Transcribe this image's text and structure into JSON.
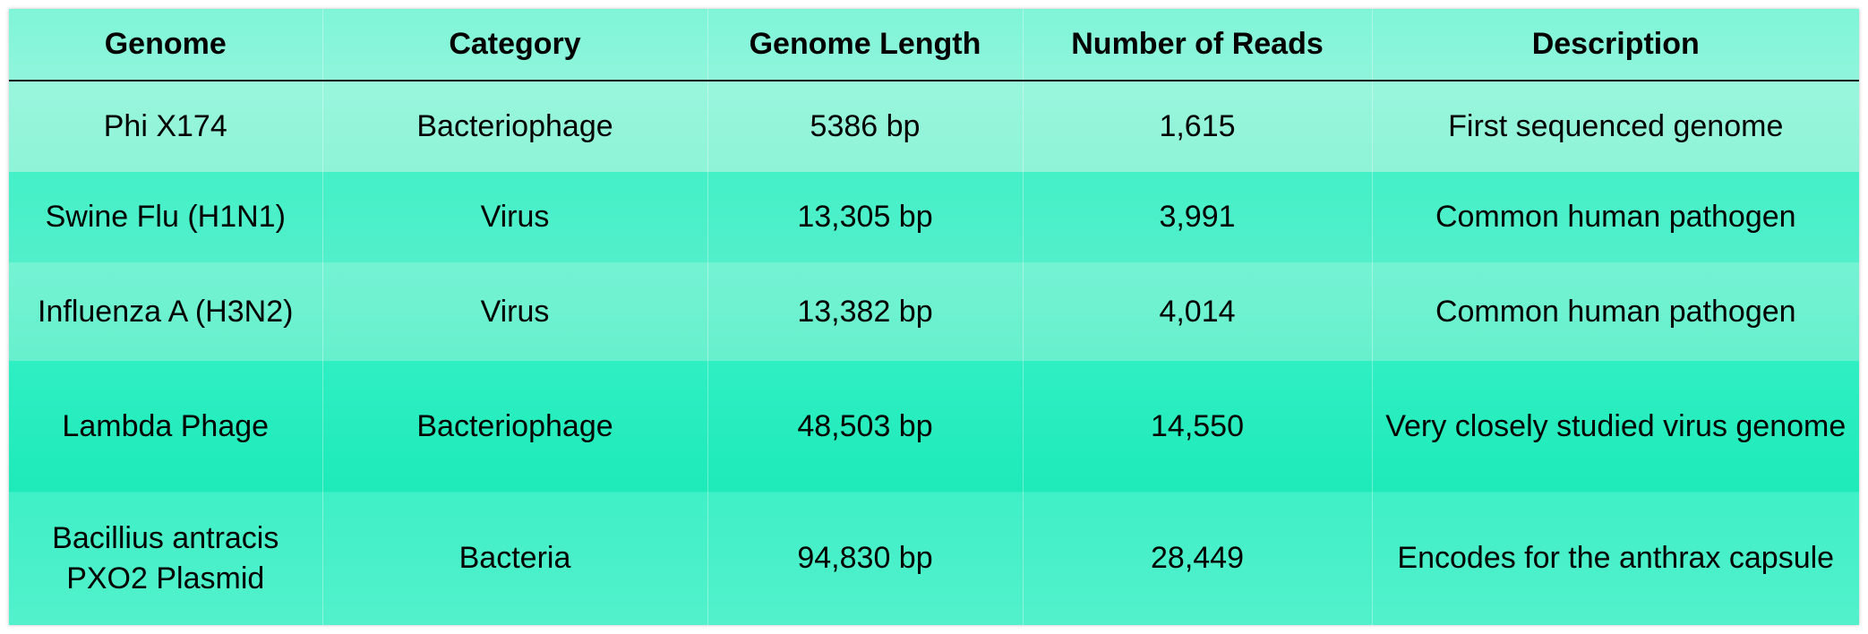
{
  "table": {
    "headers": [
      "Genome",
      "Category",
      "Genome Length",
      "Number of Reads",
      "Description"
    ],
    "rows": [
      [
        "Phi X174",
        "Bacteriophage",
        "5386 bp",
        "1,615",
        "First sequenced genome"
      ],
      [
        "Swine Flu (H1N1)",
        "Virus",
        "13,305 bp",
        "3,991",
        "Common human pathogen"
      ],
      [
        "Influenza A (H3N2)",
        "Virus",
        "13,382 bp",
        "4,014",
        "Common human pathogen"
      ],
      [
        "Lambda Phage",
        "Bacteriophage",
        "48,503 bp",
        "14,550",
        "Very closely studied virus genome"
      ],
      [
        "Bacillius antracis PXO2 Plasmid",
        "Bacteria",
        "94,830 bp",
        "28,449",
        "Encodes for the anthrax capsule"
      ]
    ]
  },
  "colors": {
    "header_bg": "#86f4d8",
    "row_light": "#92f4d9",
    "row_dark": "#2cefc2"
  }
}
